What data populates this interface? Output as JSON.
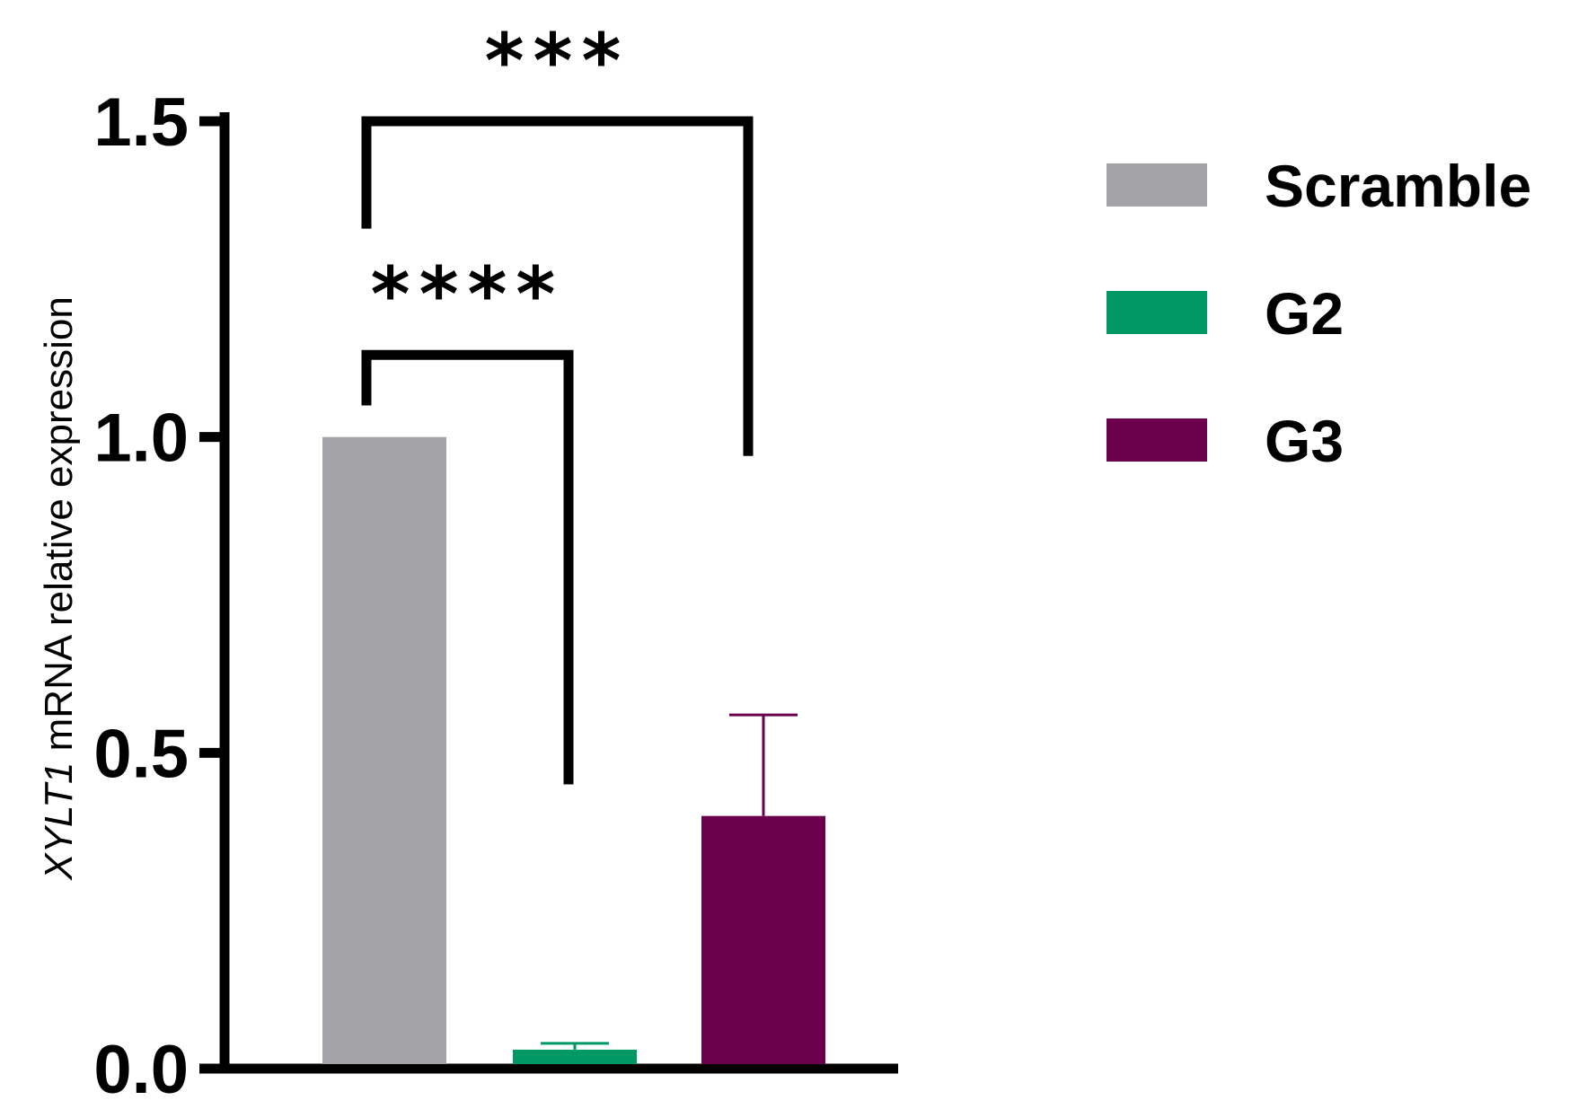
{
  "chart_data": {
    "type": "bar",
    "categories": [
      "Scramble",
      "G2",
      "G3"
    ],
    "values": [
      1.0,
      0.03,
      0.4
    ],
    "error_upper": [
      null,
      0.04,
      0.56
    ],
    "colors": [
      "#A3A3A8",
      "#009966",
      "#6B004D"
    ],
    "ylabel_italic": "XYLT1",
    "ylabel_rest": " mRNA relative expression",
    "ylim": [
      0,
      1.5
    ],
    "yticks": [
      "0.0",
      "0.5",
      "1.0",
      "1.5"
    ],
    "ytick_values": [
      0,
      0.5,
      1.0,
      1.5
    ],
    "legend": {
      "placement": "top-right",
      "entries": [
        "Scramble",
        "G2",
        "G3"
      ]
    },
    "significance": [
      {
        "from": "Scramble",
        "to": "G3",
        "label": "***",
        "level": 1.5,
        "left_end": 1.33,
        "right_end": 0.97
      },
      {
        "from": "Scramble",
        "to": "G2",
        "label": "****",
        "level": 1.13,
        "left_end": 1.05,
        "right_end": 0.45
      }
    ],
    "grid": false
  }
}
